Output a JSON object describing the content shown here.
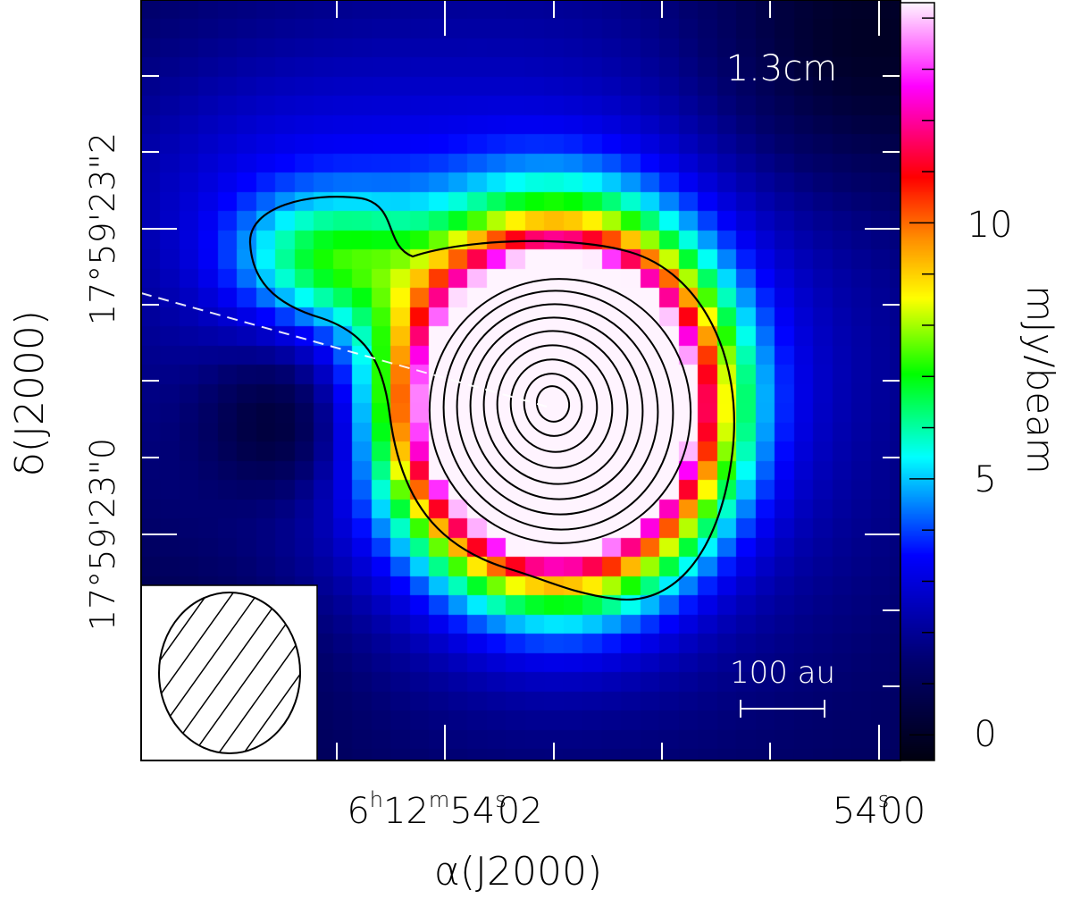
{
  "chart_data": {
    "type": "heatmap",
    "band_label": "1.3cm",
    "xlabel": "α(J2000)",
    "ylabel": "δ(J2000)",
    "x_tick_labels": [
      {
        "h": "6",
        "m": "12",
        "s": "54",
        "frac": "02"
      },
      {
        "h": "",
        "m": "",
        "s": "54",
        "frac": "00"
      }
    ],
    "y_tick_labels": [
      "17°59'23\"2",
      "17°59'23\"0"
    ],
    "colorbar": {
      "label": "mJy/beam",
      "range": [
        -0.5,
        14.3
      ],
      "ticks": [
        0,
        5,
        10
      ],
      "tick_labels": [
        "0",
        "5",
        "10"
      ],
      "colormap": [
        "#000010",
        "#00006e",
        "#0000ff",
        "#00ffff",
        "#00ff00",
        "#ffff00",
        "#ff8c00",
        "#ff0000",
        "#ff00ff",
        "#fff4ff"
      ]
    },
    "scale_bar": {
      "label": "100 au"
    },
    "beam": {
      "shape": "ellipse",
      "hatched": true
    },
    "contours": {
      "color": "#000000",
      "levels_count": 10
    },
    "dashed_line": {
      "color": "#ffffff"
    }
  }
}
